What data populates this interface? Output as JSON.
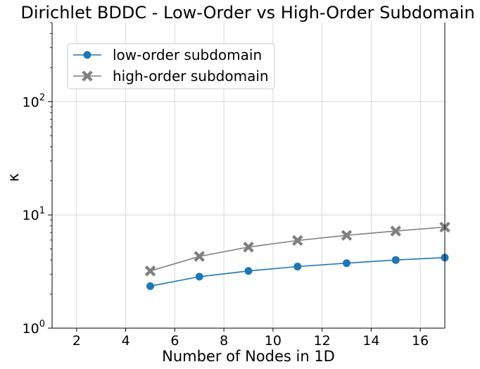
{
  "chart_data": {
    "type": "line",
    "title": "Dirichlet BDDC - Low-Order vs High-Order Subdomain",
    "xlabel": "Number of Nodes in 1D",
    "ylabel": "κ",
    "xlim": [
      1,
      17
    ],
    "ylim": [
      1,
      500
    ],
    "yscale": "log",
    "grid": true,
    "legend_position": "upper-left",
    "x_ticks": [
      2,
      4,
      6,
      8,
      10,
      12,
      14,
      16
    ],
    "y_ticks": [
      {
        "value": 1,
        "base": "10",
        "exp": "0"
      },
      {
        "value": 10,
        "base": "10",
        "exp": "1"
      },
      {
        "value": 100,
        "base": "10",
        "exp": "2"
      }
    ],
    "x": [
      5,
      7,
      9,
      11,
      13,
      15,
      17
    ],
    "series": [
      {
        "name": "low-order subdomain",
        "color": "#1f77b4",
        "marker": "circle",
        "values": [
          2.35,
          2.85,
          3.2,
          3.5,
          3.75,
          4.0,
          4.2
        ]
      },
      {
        "name": "high-order subdomain",
        "color": "#7f7f7f",
        "marker": "x-filled",
        "values": [
          3.2,
          4.3,
          5.2,
          5.95,
          6.6,
          7.2,
          7.8
        ]
      }
    ]
  }
}
